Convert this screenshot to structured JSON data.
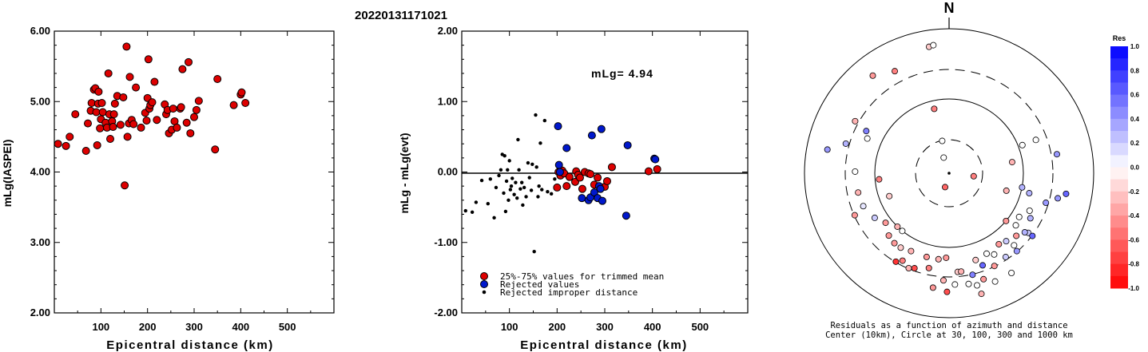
{
  "title": "20220131171021",
  "chart_data": [
    {
      "type": "scatter",
      "title": "",
      "xlabel": "Epicentral distance (km)",
      "ylabel": "mLg(IASPEI)",
      "xlim": [
        0,
        600
      ],
      "ylim": [
        2.0,
        6.0
      ],
      "xticks": [
        "100",
        "200",
        "300",
        "400",
        "500"
      ],
      "yticks": [
        "2.00",
        "3.00",
        "4.00",
        "5.00",
        "6.00"
      ],
      "grid": false,
      "series": [
        {
          "color": "#dd0000",
          "points": [
            [
              8,
              4.4
            ],
            [
              25,
              4.37
            ],
            [
              33,
              4.5
            ],
            [
              45,
              4.82
            ],
            [
              68,
              4.3
            ],
            [
              72,
              4.69
            ],
            [
              78,
              4.87
            ],
            [
              80,
              4.98
            ],
            [
              85,
              5.17
            ],
            [
              88,
              5.19
            ],
            [
              90,
              4.85
            ],
            [
              92,
              4.38
            ],
            [
              94,
              4.97
            ],
            [
              95,
              5.14
            ],
            [
              98,
              4.62
            ],
            [
              100,
              4.75
            ],
            [
              102,
              4.98
            ],
            [
              104,
              4.85
            ],
            [
              110,
              4.7
            ],
            [
              113,
              4.63
            ],
            [
              116,
              5.4
            ],
            [
              118,
              4.82
            ],
            [
              120,
              4.47
            ],
            [
              124,
              4.72
            ],
            [
              126,
              4.64
            ],
            [
              128,
              4.82
            ],
            [
              130,
              4.97
            ],
            [
              135,
              5.08
            ],
            [
              142,
              4.67
            ],
            [
              148,
              5.06
            ],
            [
              151,
              3.81
            ],
            [
              155,
              5.78
            ],
            [
              157,
              4.5
            ],
            [
              160,
              4.69
            ],
            [
              162,
              5.35
            ],
            [
              166,
              4.74
            ],
            [
              170,
              4.68
            ],
            [
              175,
              5.2
            ],
            [
              186,
              4.63
            ],
            [
              195,
              4.84
            ],
            [
              198,
              4.73
            ],
            [
              200,
              5.05
            ],
            [
              202,
              5.6
            ],
            [
              204,
              4.9
            ],
            [
              206,
              4.95
            ],
            [
              210,
              4.99
            ],
            [
              215,
              5.28
            ],
            [
              220,
              4.74
            ],
            [
              237,
              4.96
            ],
            [
              240,
              4.82
            ],
            [
              243,
              4.88
            ],
            [
              246,
              4.55
            ],
            [
              252,
              4.6
            ],
            [
              255,
              4.9
            ],
            [
              258,
              4.72
            ],
            [
              263,
              4.63
            ],
            [
              270,
              4.9
            ],
            [
              272,
              4.92
            ],
            [
              275,
              5.46
            ],
            [
              284,
              4.7
            ],
            [
              288,
              5.56
            ],
            [
              292,
              4.55
            ],
            [
              300,
              4.78
            ],
            [
              305,
              4.88
            ],
            [
              310,
              5.01
            ],
            [
              345,
              4.32
            ],
            [
              350,
              5.32
            ],
            [
              385,
              4.95
            ],
            [
              400,
              5.1
            ],
            [
              402,
              5.13
            ],
            [
              410,
              4.98
            ]
          ]
        }
      ]
    },
    {
      "type": "scatter",
      "title": "",
      "xlabel": "Epicentral distance (km)",
      "ylabel": "mLg - mLg(evt)",
      "xlim": [
        0,
        600
      ],
      "ylim": [
        -2.0,
        2.0
      ],
      "xticks": [
        "100",
        "200",
        "300",
        "400",
        "500"
      ],
      "yticks": [
        "-2.00",
        "-1.00",
        "0.00",
        "1.00",
        "2.00"
      ],
      "annotation": "mLg= 4.94",
      "reference_line_y": 0.0,
      "legend_position": "bottom-left",
      "series": [
        {
          "name": "25%-75% values for trimmed mean",
          "color": "#dd0000",
          "marker": "circle-large",
          "points": [
            [
              200,
              -0.22
            ],
            [
              203,
              0.0
            ],
            [
              207,
              -0.05
            ],
            [
              211,
              0.02
            ],
            [
              215,
              -0.02
            ],
            [
              220,
              -0.2
            ],
            [
              226,
              -0.07
            ],
            [
              238,
              -0.14
            ],
            [
              240,
              0.01
            ],
            [
              244,
              -0.04
            ],
            [
              248,
              -0.08
            ],
            [
              253,
              -0.24
            ],
            [
              258,
              0.0
            ],
            [
              266,
              -0.02
            ],
            [
              270,
              -0.03
            ],
            [
              278,
              -0.18
            ],
            [
              285,
              -0.08
            ],
            [
              300,
              -0.21
            ],
            [
              305,
              -0.13
            ],
            [
              315,
              0.07
            ],
            [
              392,
              0.01
            ],
            [
              410,
              0.04
            ]
          ]
        },
        {
          "name": "Rejected values",
          "color": "#0018cc",
          "marker": "circle-large",
          "points": [
            [
              202,
              0.65
            ],
            [
              204,
              0.1
            ],
            [
              206,
              0.0
            ],
            [
              220,
              0.34
            ],
            [
              252,
              -0.37
            ],
            [
              266,
              -0.4
            ],
            [
              270,
              -0.36
            ],
            [
              273,
              0.52
            ],
            [
              278,
              -0.29
            ],
            [
              285,
              -0.37
            ],
            [
              288,
              -0.2
            ],
            [
              291,
              -0.24
            ],
            [
              293,
              0.61
            ],
            [
              295,
              -0.41
            ],
            [
              345,
              -0.62
            ],
            [
              348,
              0.38
            ],
            [
              404,
              0.19
            ],
            [
              406,
              0.18
            ]
          ]
        },
        {
          "name": "Rejected improper distance",
          "color": "#000000",
          "marker": "dot-small",
          "points": [
            [
              8,
              -0.55
            ],
            [
              22,
              -0.57
            ],
            [
              30,
              -0.43
            ],
            [
              42,
              -0.12
            ],
            [
              55,
              -0.45
            ],
            [
              60,
              -0.1
            ],
            [
              68,
              -0.65
            ],
            [
              72,
              -0.22
            ],
            [
              78,
              -0.05
            ],
            [
              82,
              0.03
            ],
            [
              85,
              0.25
            ],
            [
              88,
              -0.3
            ],
            [
              90,
              0.23
            ],
            [
              92,
              -0.56
            ],
            [
              94,
              -0.13
            ],
            [
              96,
              0.03
            ],
            [
              98,
              -0.4
            ],
            [
              100,
              0.16
            ],
            [
              102,
              -0.25
            ],
            [
              104,
              -0.2
            ],
            [
              106,
              -0.09
            ],
            [
              110,
              -0.32
            ],
            [
              113,
              -0.15
            ],
            [
              116,
              -0.37
            ],
            [
              118,
              0.46
            ],
            [
              120,
              0.03
            ],
            [
              123,
              -0.24
            ],
            [
              126,
              -0.15
            ],
            [
              128,
              -0.47
            ],
            [
              131,
              -0.22
            ],
            [
              135,
              -0.35
            ],
            [
              139,
              0.13
            ],
            [
              142,
              -0.08
            ],
            [
              146,
              -0.26
            ],
            [
              148,
              0.11
            ],
            [
              152,
              -1.13
            ],
            [
              155,
              0.81
            ],
            [
              157,
              0.07
            ],
            [
              160,
              -0.35
            ],
            [
              162,
              -0.2
            ],
            [
              165,
              0.41
            ],
            [
              168,
              -0.25
            ],
            [
              174,
              0.73
            ],
            [
              180,
              -0.28
            ],
            [
              188,
              -0.31
            ],
            [
              195,
              -0.1
            ]
          ]
        }
      ]
    },
    {
      "type": "scatter",
      "title": "N",
      "subtype": "polar-azimuth-distance",
      "caption_line1": "Residuals as a function of azimuth and distance",
      "caption_line2": "Center (10km), Circle at 30, 100, 300 and 1000 km",
      "colorbar_title": "Res",
      "colorbar_ticks": [
        "1.0",
        "0.8",
        "0.6",
        "0.4",
        "0.2",
        "0.0",
        "-0.2",
        "-0.4",
        "-0.6",
        "-0.8",
        "-1.0"
      ],
      "colorbar_range": [
        -1.0,
        1.0
      ],
      "ring_labels_km": [
        30,
        100,
        300,
        1000
      ],
      "points_azimuth_distance_residual": [
        [
          332,
          560,
          -0.5
        ],
        [
          351,
          620,
          -0.2
        ],
        [
          353,
          625,
          0.0
        ],
        [
          347,
          320,
          -0.5
        ],
        [
          348,
          160,
          0.0
        ],
        [
          341,
          80,
          0.0
        ],
        [
          322,
          600,
          -0.4
        ],
        [
          299,
          520,
          -0.3
        ],
        [
          297,
          450,
          0.5
        ],
        [
          293,
          430,
          0.0
        ],
        [
          281,
          600,
          0.4
        ],
        [
          286,
          520,
          0.3
        ],
        [
          271,
          455,
          0.0
        ],
        [
          265,
          340,
          -0.5
        ],
        [
          258,
          450,
          -0.3
        ],
        [
          249,
          445,
          0.1
        ],
        [
          249,
          310,
          -0.2
        ],
        [
          246,
          500,
          -0.4
        ],
        [
          239,
          420,
          0.2
        ],
        [
          232,
          390,
          -0.4
        ],
        [
          224,
          420,
          -0.4
        ],
        [
          224,
          360,
          -0.3
        ],
        [
          219,
          360,
          0.0
        ],
        [
          218,
          430,
          -0.4
        ],
        [
          213,
          430,
          -0.2
        ],
        [
          211,
          500,
          -0.8
        ],
        [
          208,
          480,
          -0.5
        ],
        [
          206,
          420,
          -0.3
        ],
        [
          203,
          500,
          -0.3
        ],
        [
          200,
          490,
          -0.7
        ],
        [
          195,
          420,
          -0.4
        ],
        [
          192,
          470,
          -0.5
        ],
        [
          188,
          560,
          -0.4
        ],
        [
          187,
          420,
          -0.3
        ],
        [
          182,
          410,
          -0.4
        ],
        [
          183,
          520,
          -0.3
        ],
        [
          181,
          575,
          -0.7
        ],
        [
          177,
          540,
          0.0
        ],
        [
          175,
          480,
          -0.2
        ],
        [
          173,
          480,
          -0.3
        ],
        [
          170,
          545,
          0.0
        ],
        [
          167,
          505,
          0.5
        ],
        [
          166,
          560,
          0.0
        ],
        [
          165,
          605,
          -0.3
        ],
        [
          163,
          440,
          -0.2
        ],
        [
          162,
          540,
          -0.4
        ],
        [
          160,
          475,
          0.6
        ],
        [
          157,
          570,
          0.0
        ],
        [
          155,
          430,
          0.0
        ],
        [
          154,
          500,
          -0.4
        ],
        [
          151,
          450,
          0.0
        ],
        [
          148,
          570,
          0.0
        ],
        [
          146,
          490,
          0.2
        ],
        [
          145,
          420,
          -0.4
        ],
        [
          140,
          430,
          0.2
        ],
        [
          139,
          500,
          0.4
        ],
        [
          138,
          470,
          0.0
        ],
        [
          133,
          445,
          -0.4
        ],
        [
          130,
          360,
          -0.4
        ],
        [
          128,
          410,
          0.0
        ],
        [
          127,
          480,
          0.2
        ],
        [
          127,
          505,
          0.6
        ],
        [
          128,
          465,
          0.3
        ],
        [
          122,
          400,
          0.0
        ],
        [
          119,
          450,
          0.3
        ],
        [
          115,
          430,
          0.0
        ],
        [
          104,
          400,
          0.3
        ],
        [
          101,
          360,
          0.3
        ],
        [
          97,
          120,
          -0.5
        ],
        [
          107,
          290,
          -0.3
        ],
        [
          69,
          450,
          0.0
        ],
        [
          69,
          380,
          0.0
        ],
        [
          80,
          310,
          -0.3
        ],
        [
          107,
          490,
          0.4
        ],
        [
          103,
          540,
          0.4
        ],
        [
          100,
          575,
          0.6
        ],
        [
          80,
          530,
          0.4
        ],
        [
          196,
          70,
          -0.6
        ]
      ]
    }
  ]
}
